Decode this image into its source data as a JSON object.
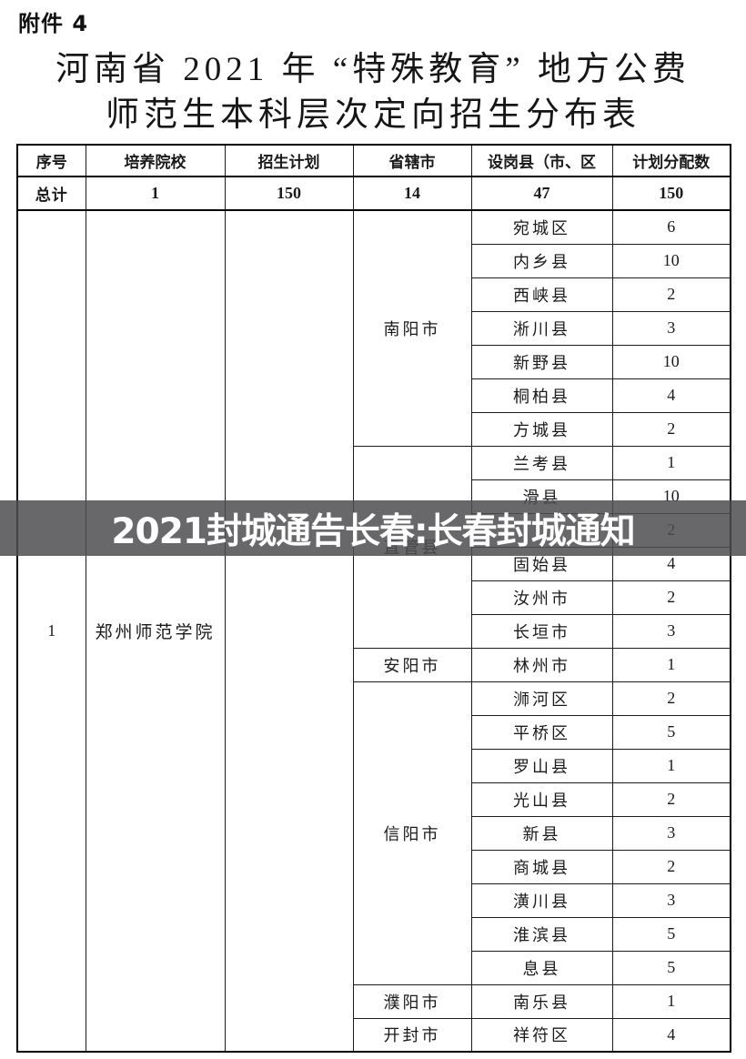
{
  "page": {
    "attachment_label": "附件 4",
    "title_line1": "河南省 2021 年 “特殊教育” 地方公费",
    "title_line2": "师范生本科层次定向招生分布表"
  },
  "banner": {
    "text": "2021封城通告长春:长春封城通知",
    "background_color": "#4E4E50",
    "text_color": "#FFFFFF"
  },
  "table": {
    "headers": [
      "序号",
      "培养院校",
      "招生计划",
      "省辖市",
      "设岗县（市、区",
      "计划分配数"
    ],
    "total_row": {
      "label": "总计",
      "institution_count": "1",
      "enrollment_plan": "150",
      "city_count": "14",
      "county_count": "47",
      "allocation_total": "150"
    },
    "record": {
      "serial": "1",
      "institution": "郑州师范学院",
      "enrollment_plan": ""
    },
    "city_groups": [
      {
        "city": "南阳市",
        "counties": [
          {
            "name": "宛城区",
            "allocation": "6"
          },
          {
            "name": "内乡县",
            "allocation": "10"
          },
          {
            "name": "西峡县",
            "allocation": "2"
          },
          {
            "name": "淅川县",
            "allocation": "3"
          },
          {
            "name": "新野县",
            "allocation": "10"
          },
          {
            "name": "桐柏县",
            "allocation": "4"
          },
          {
            "name": "方城县",
            "allocation": "2"
          }
        ]
      },
      {
        "city": "直管县",
        "counties": [
          {
            "name": "兰考县",
            "allocation": "1"
          },
          {
            "name": "滑县",
            "allocation": "10"
          },
          {
            "name": "",
            "allocation": "2"
          },
          {
            "name": "固始县",
            "allocation": "4"
          },
          {
            "name": "汝州市",
            "allocation": "2"
          },
          {
            "name": "长垣市",
            "allocation": "3"
          }
        ]
      },
      {
        "city": "安阳市",
        "counties": [
          {
            "name": "林州市",
            "allocation": "1"
          }
        ]
      },
      {
        "city": "信阳市",
        "counties": [
          {
            "name": "浉河区",
            "allocation": "2"
          },
          {
            "name": "平桥区",
            "allocation": "5"
          },
          {
            "name": "罗山县",
            "allocation": "1"
          },
          {
            "name": "光山县",
            "allocation": "2"
          },
          {
            "name": "新县",
            "allocation": "3"
          },
          {
            "name": "商城县",
            "allocation": "2"
          },
          {
            "name": "潢川县",
            "allocation": "3"
          },
          {
            "name": "淮滨县",
            "allocation": "5"
          },
          {
            "name": "息县",
            "allocation": "5"
          }
        ]
      },
      {
        "city": "濮阳市",
        "counties": [
          {
            "name": "南乐县",
            "allocation": "1"
          }
        ]
      },
      {
        "city": "开封市",
        "counties": [
          {
            "name": "祥符区",
            "allocation": "4"
          }
        ]
      }
    ]
  }
}
